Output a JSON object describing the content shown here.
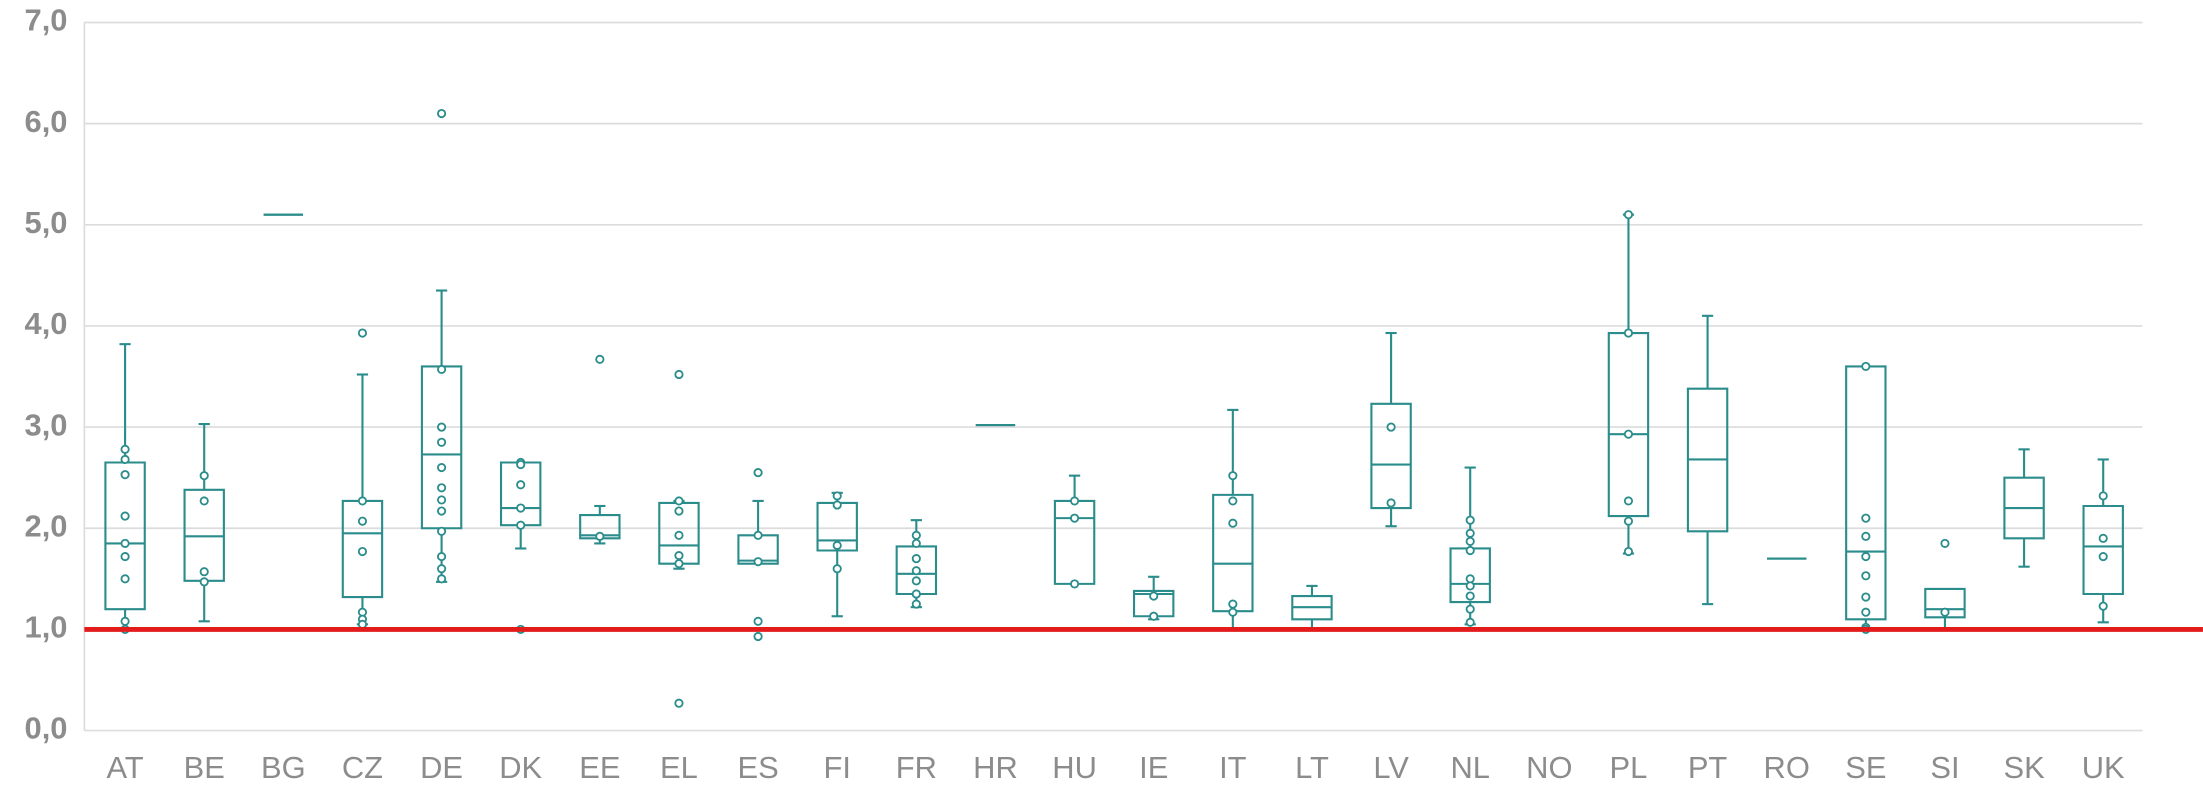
{
  "chart_data": {
    "type": "box",
    "color": "#2b8c8c",
    "grid": true,
    "ylim": [
      0,
      7
    ],
    "yticks": [
      {
        "value": 0,
        "label": "0,0"
      },
      {
        "value": 1,
        "label": "1,0"
      },
      {
        "value": 2,
        "label": "2,0"
      },
      {
        "value": 3,
        "label": "3,0"
      },
      {
        "value": 4,
        "label": "4,0"
      },
      {
        "value": 5,
        "label": "5,0"
      },
      {
        "value": 6,
        "label": "6,0"
      },
      {
        "value": 7,
        "label": "7,0"
      }
    ],
    "reference_line": {
      "value": 1,
      "color": "#e31b1b"
    },
    "categories": [
      "AT",
      "BE",
      "BG",
      "CZ",
      "DE",
      "DK",
      "EE",
      "EL",
      "ES",
      "FI",
      "FR",
      "HR",
      "HU",
      "IE",
      "IT",
      "LT",
      "LV",
      "NL",
      "NO",
      "PL",
      "PT",
      "RO",
      "SE",
      "SI",
      "SK",
      "UK"
    ],
    "boxes": [
      {
        "min": 1.0,
        "q1": 1.2,
        "median": 1.85,
        "q3": 2.65,
        "max": 3.82,
        "points": [
          2.78,
          2.68,
          2.53,
          2.12,
          1.85,
          1.72,
          1.5,
          1.08,
          1.0
        ]
      },
      {
        "min": 1.08,
        "q1": 1.48,
        "median": 1.92,
        "q3": 2.38,
        "max": 3.03,
        "points": [
          2.52,
          2.27,
          1.57,
          1.47
        ]
      },
      {
        "min": 5.1,
        "q1": 5.1,
        "median": 5.1,
        "q3": 5.1,
        "max": 5.1,
        "points": []
      },
      {
        "min": 1.05,
        "q1": 1.32,
        "median": 1.95,
        "q3": 2.27,
        "max": 3.52,
        "points": [
          3.93,
          2.27,
          2.07,
          1.77,
          1.17,
          1.1,
          1.05
        ]
      },
      {
        "min": 1.47,
        "q1": 2.0,
        "median": 2.73,
        "q3": 3.6,
        "max": 4.35,
        "points": [
          6.1,
          3.57,
          3.0,
          2.85,
          2.6,
          2.4,
          2.28,
          2.17,
          1.97,
          1.72,
          1.6,
          1.5
        ]
      },
      {
        "min": 1.8,
        "q1": 2.03,
        "median": 2.2,
        "q3": 2.65,
        "max": 2.65,
        "points": [
          2.65,
          2.63,
          2.43,
          2.2,
          2.03,
          1.0
        ]
      },
      {
        "min": 1.85,
        "q1": 1.9,
        "median": 1.93,
        "q3": 2.13,
        "max": 2.22,
        "points": [
          3.67,
          1.92
        ]
      },
      {
        "min": 1.6,
        "q1": 1.65,
        "median": 1.83,
        "q3": 2.25,
        "max": 2.27,
        "points": [
          3.52,
          2.27,
          2.17,
          1.93,
          1.73,
          1.65,
          0.27
        ]
      },
      {
        "min": 1.65,
        "q1": 1.65,
        "median": 1.68,
        "q3": 1.93,
        "max": 2.27,
        "points": [
          2.55,
          1.93,
          1.67,
          1.08,
          0.93
        ]
      },
      {
        "min": 1.13,
        "q1": 1.78,
        "median": 1.88,
        "q3": 2.25,
        "max": 2.35,
        "points": [
          2.32,
          2.23,
          1.83,
          1.6
        ]
      },
      {
        "min": 1.22,
        "q1": 1.35,
        "median": 1.55,
        "q3": 1.82,
        "max": 2.08,
        "points": [
          1.93,
          1.85,
          1.7,
          1.58,
          1.48,
          1.35,
          1.25
        ]
      },
      {
        "min": 3.02,
        "q1": 3.02,
        "median": 3.02,
        "q3": 3.02,
        "max": 3.02,
        "points": []
      },
      {
        "min": 1.45,
        "q1": 1.45,
        "median": 2.1,
        "q3": 2.27,
        "max": 2.52,
        "points": [
          2.27,
          2.1,
          1.45
        ]
      },
      {
        "min": 1.1,
        "q1": 1.13,
        "median": 1.35,
        "q3": 1.38,
        "max": 1.52,
        "points": [
          1.33,
          1.13
        ]
      },
      {
        "min": 1.0,
        "q1": 1.18,
        "median": 1.65,
        "q3": 2.33,
        "max": 3.17,
        "points": [
          2.52,
          2.27,
          2.05,
          1.25,
          1.17
        ]
      },
      {
        "min": 1.0,
        "q1": 1.1,
        "median": 1.22,
        "q3": 1.33,
        "max": 1.43,
        "points": []
      },
      {
        "min": 2.02,
        "q1": 2.2,
        "median": 2.63,
        "q3": 3.23,
        "max": 3.93,
        "points": [
          3.0,
          2.25
        ]
      },
      {
        "min": 1.05,
        "q1": 1.27,
        "median": 1.45,
        "q3": 1.8,
        "max": 2.6,
        "points": [
          2.08,
          1.95,
          1.87,
          1.78,
          1.5,
          1.43,
          1.33,
          1.2,
          1.07
        ]
      },
      {
        "min": 1.0,
        "q1": 1.0,
        "median": 1.0,
        "q3": 1.0,
        "max": 1.0,
        "points": []
      },
      {
        "min": 1.75,
        "q1": 2.12,
        "median": 2.93,
        "q3": 3.93,
        "max": 5.1,
        "points": [
          5.1,
          3.93,
          2.93,
          2.27,
          2.07,
          1.77
        ]
      },
      {
        "min": 1.25,
        "q1": 1.97,
        "median": 2.68,
        "q3": 3.38,
        "max": 4.1,
        "points": []
      },
      {
        "min": 1.7,
        "q1": 1.7,
        "median": 1.7,
        "q3": 1.7,
        "max": 1.7,
        "points": []
      },
      {
        "min": 1.0,
        "q1": 1.1,
        "median": 1.77,
        "q3": 3.6,
        "max": 3.6,
        "points": [
          3.6,
          2.1,
          1.92,
          1.72,
          1.53,
          1.32,
          1.17,
          1.02,
          1.0
        ]
      },
      {
        "min": 1.0,
        "q1": 1.12,
        "median": 1.2,
        "q3": 1.4,
        "max": 1.4,
        "points": [
          1.85,
          1.17
        ]
      },
      {
        "min": 1.62,
        "q1": 1.9,
        "median": 2.2,
        "q3": 2.5,
        "max": 2.78,
        "points": []
      },
      {
        "min": 1.07,
        "q1": 1.35,
        "median": 1.82,
        "q3": 2.22,
        "max": 2.68,
        "points": [
          2.32,
          1.9,
          1.72,
          1.23
        ]
      }
    ]
  }
}
